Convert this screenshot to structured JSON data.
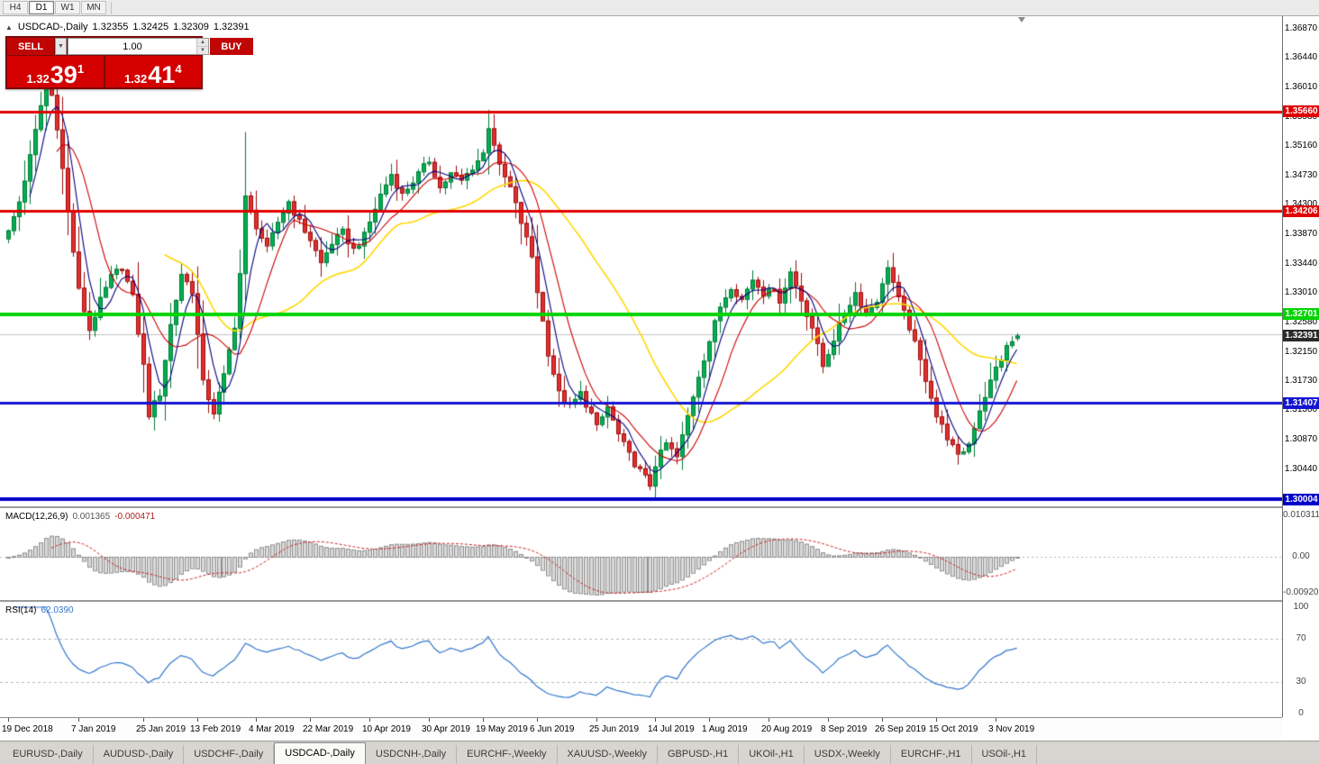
{
  "window": {
    "timeframes": [
      {
        "label": "H4",
        "active": false
      },
      {
        "label": "D1",
        "active": true
      },
      {
        "label": "W1",
        "active": false
      },
      {
        "label": "MN",
        "active": false
      }
    ]
  },
  "chart_header": {
    "symbol_title": "USDCAD-,Daily",
    "open": "1.32355",
    "high": "1.32425",
    "low": "1.32309",
    "close": "1.32391"
  },
  "trade_panel": {
    "sell_label": "SELL",
    "buy_label": "BUY",
    "volume": "1.00",
    "sell_price_base": "1.32",
    "sell_price_big": "39",
    "sell_price_sup": "1",
    "buy_price_base": "1.32",
    "buy_price_big": "41",
    "buy_price_sup": "4"
  },
  "chart_data": {
    "type": "candlestick",
    "symbol": "USDCAD",
    "timeframe": "Daily",
    "ohlc_display": {
      "open": 1.32355,
      "high": 1.32425,
      "low": 1.32309,
      "close": 1.32391
    },
    "bid": 1.32391,
    "ask": 1.32414,
    "current_price_label": "1.32391",
    "price_range": {
      "top": 1.3705,
      "bottom": 1.299
    },
    "candle_count": 188,
    "visible_slots": 236,
    "price_axis_labels": [
      "1.36870",
      "1.36440",
      "1.36010",
      "1.35580",
      "1.35160",
      "1.34730",
      "1.34300",
      "1.33870",
      "1.33440",
      "1.33010",
      "1.32580",
      "1.32150",
      "1.31730",
      "1.31300",
      "1.30870",
      "1.30440",
      "1.30010"
    ],
    "levels": [
      {
        "price": 1.3566,
        "label": "1.35660",
        "color": "#e10000",
        "width": 3
      },
      {
        "price": 1.34206,
        "label": "1.34206",
        "color": "#e10000",
        "width": 3
      },
      {
        "price": 1.32701,
        "label": "1.32701",
        "color": "#00d400",
        "width": 4
      },
      {
        "price": 1.31407,
        "label": "1.31407",
        "color": "#1414d2",
        "width": 3
      },
      {
        "price": 1.30004,
        "label": "1.30004",
        "color": "#0000c8",
        "width": 4
      }
    ],
    "close_waypoints": [
      [
        0,
        1.339
      ],
      [
        2,
        1.3435
      ],
      [
        4,
        1.35
      ],
      [
        6,
        1.3575
      ],
      [
        7,
        1.362
      ],
      [
        8,
        1.359
      ],
      [
        9,
        1.3545
      ],
      [
        11,
        1.342
      ],
      [
        13,
        1.3305
      ],
      [
        15,
        1.3248
      ],
      [
        17,
        1.329
      ],
      [
        19,
        1.3325
      ],
      [
        21,
        1.334
      ],
      [
        23,
        1.3295
      ],
      [
        25,
        1.3195
      ],
      [
        26,
        1.3125
      ],
      [
        28,
        1.3155
      ],
      [
        30,
        1.3255
      ],
      [
        32,
        1.333
      ],
      [
        34,
        1.3305
      ],
      [
        35,
        1.324
      ],
      [
        36,
        1.317
      ],
      [
        38,
        1.3128
      ],
      [
        40,
        1.318
      ],
      [
        42,
        1.3255
      ],
      [
        43,
        1.333
      ],
      [
        44,
        1.344
      ],
      [
        46,
        1.34
      ],
      [
        48,
        1.3365
      ],
      [
        50,
        1.3405
      ],
      [
        52,
        1.3435
      ],
      [
        54,
        1.3405
      ],
      [
        56,
        1.338
      ],
      [
        58,
        1.3345
      ],
      [
        60,
        1.3375
      ],
      [
        62,
        1.339
      ],
      [
        64,
        1.3365
      ],
      [
        66,
        1.3385
      ],
      [
        67,
        1.3405
      ],
      [
        69,
        1.3445
      ],
      [
        71,
        1.3475
      ],
      [
        73,
        1.3445
      ],
      [
        75,
        1.3465
      ],
      [
        77,
        1.3485
      ],
      [
        78,
        1.3495
      ],
      [
        80,
        1.3455
      ],
      [
        82,
        1.3475
      ],
      [
        84,
        1.3465
      ],
      [
        86,
        1.3485
      ],
      [
        88,
        1.3505
      ],
      [
        89,
        1.3545
      ],
      [
        90,
        1.352
      ],
      [
        91,
        1.3485
      ],
      [
        93,
        1.3455
      ],
      [
        95,
        1.3405
      ],
      [
        97,
        1.3355
      ],
      [
        98,
        1.3305
      ],
      [
        100,
        1.3215
      ],
      [
        102,
        1.3155
      ],
      [
        104,
        1.3135
      ],
      [
        106,
        1.3155
      ],
      [
        108,
        1.3125
      ],
      [
        109,
        1.3105
      ],
      [
        111,
        1.3135
      ],
      [
        113,
        1.3095
      ],
      [
        115,
        1.3065
      ],
      [
        117,
        1.3042
      ],
      [
        119,
        1.3022
      ],
      [
        120,
        1.3052
      ],
      [
        122,
        1.3082
      ],
      [
        124,
        1.3062
      ],
      [
        126,
        1.3122
      ],
      [
        128,
        1.3182
      ],
      [
        130,
        1.3232
      ],
      [
        132,
        1.3282
      ],
      [
        134,
        1.3312
      ],
      [
        136,
        1.3292
      ],
      [
        138,
        1.3322
      ],
      [
        140,
        1.3302
      ],
      [
        141,
        1.3312
      ],
      [
        143,
        1.3292
      ],
      [
        145,
        1.3332
      ],
      [
        147,
        1.3292
      ],
      [
        149,
        1.3252
      ],
      [
        151,
        1.3195
      ],
      [
        153,
        1.3235
      ],
      [
        155,
        1.3272
      ],
      [
        157,
        1.3302
      ],
      [
        159,
        1.3272
      ],
      [
        161,
        1.3292
      ],
      [
        162,
        1.3312
      ],
      [
        163,
        1.3342
      ],
      [
        165,
        1.3292
      ],
      [
        167,
        1.3252
      ],
      [
        169,
        1.3202
      ],
      [
        171,
        1.3152
      ],
      [
        172,
        1.3122
      ],
      [
        174,
        1.3092
      ],
      [
        176,
        1.3062
      ],
      [
        178,
        1.3082
      ],
      [
        180,
        1.3132
      ],
      [
        182,
        1.3172
      ],
      [
        183,
        1.3192
      ],
      [
        185,
        1.3222
      ],
      [
        187,
        1.32391
      ]
    ],
    "moving_averages": [
      {
        "period": 30,
        "color": "#ffd700"
      },
      {
        "period": 10,
        "color": "#cc0000"
      },
      {
        "period": 5,
        "color": "#000080"
      }
    ],
    "date_labels": [
      {
        "text": "19 Dec 2018",
        "index": 0
      },
      {
        "text": "7 Jan 2019",
        "index": 13
      },
      {
        "text": "25 Jan 2019",
        "index": 25
      },
      {
        "text": "13 Feb 2019",
        "index": 35
      },
      {
        "text": "4 Mar 2019",
        "index": 46
      },
      {
        "text": "22 Mar 2019",
        "index": 56
      },
      {
        "text": "10 Apr 2019",
        "index": 67
      },
      {
        "text": "30 Apr 2019",
        "index": 78
      },
      {
        "text": "19 May 2019",
        "index": 88
      },
      {
        "text": "6 Jun 2019",
        "index": 98
      },
      {
        "text": "25 Jun 2019",
        "index": 109
      },
      {
        "text": "14 Jul 2019",
        "index": 120
      },
      {
        "text": "1 Aug 2019",
        "index": 130
      },
      {
        "text": "20 Aug 2019",
        "index": 141
      },
      {
        "text": "8 Sep 2019",
        "index": 152
      },
      {
        "text": "26 Sep 2019",
        "index": 162
      },
      {
        "text": "15 Oct 2019",
        "index": 172
      },
      {
        "text": "3 Nov 2019",
        "index": 183
      }
    ],
    "macd": {
      "title": "MACD(12,26,9)",
      "main_value": "0.001365",
      "signal_value": "-0.000471",
      "fast": 12,
      "slow": 26,
      "signal": 9,
      "axis_top": "0.010311",
      "axis_zero": "0.00",
      "axis_bottom": "-0.009203"
    },
    "rsi": {
      "title": "RSI(14)",
      "value": "62.0390",
      "period": 14,
      "axis": [
        "100",
        "70",
        "30",
        "0"
      ],
      "guide_levels": [
        70,
        30
      ]
    }
  },
  "tabs": [
    {
      "label": "EURUSD-,Daily",
      "active": false
    },
    {
      "label": "AUDUSD-,Daily",
      "active": false
    },
    {
      "label": "USDCHF-,Daily",
      "active": false
    },
    {
      "label": "USDCAD-,Daily",
      "active": true
    },
    {
      "label": "USDCNH-,Daily",
      "active": false
    },
    {
      "label": "EURCHF-,Weekly",
      "active": false
    },
    {
      "label": "XAUUSD-,Weekly",
      "active": false
    },
    {
      "label": "GBPUSD-,H1",
      "active": false
    },
    {
      "label": "UKOil-,H1",
      "active": false
    },
    {
      "label": "USDX-,Weekly",
      "active": false
    },
    {
      "label": "EURCHF-,H1",
      "active": false
    },
    {
      "label": "USOil-,H1",
      "active": false
    }
  ]
}
